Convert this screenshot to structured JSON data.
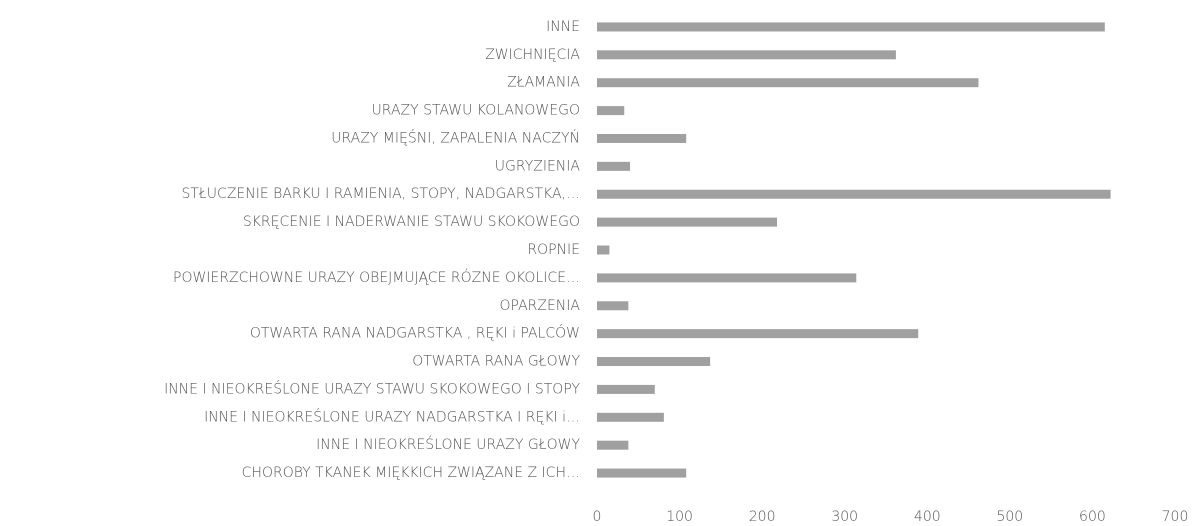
{
  "chart_data": {
    "type": "bar",
    "orientation": "horizontal",
    "categories": [
      "INNE",
      "ZWICHNIĘCIA",
      "ZŁAMANIA",
      "URAZY STAWU KOLANOWEGO",
      "URAZY MIĘŚNI, ZAPALENIA NACZYŃ",
      "UGRYZIENIA",
      "STŁUCZENIE BARKU I RAMIENIA, STOPY, NADGARSTKA,…",
      "SKRĘCENIE I NADERWANIE STAWU SKOKOWEGO",
      "ROPNIE",
      "POWIERZCHOWNE URAZY OBEJMUJĄCE RÓZNE OKOLICE…",
      "OPARZENIA",
      "OTWARTA RANA NADGARSTKA , RĘKI i PALCÓW",
      "OTWARTA RANA GŁOWY",
      "INNE I NIEOKREŚLONE URAZY STAWU SKOKOWEGO I STOPY",
      "INNE I NIEOKREŚLONE URAZY NADGARSTKA I RĘKI i…",
      "INNE I NIEOKREŚLONE URAZY GŁOWY",
      "CHOROBY TKANEK MIĘKKICH ZWIĄZANE Z ICH…"
    ],
    "values": [
      615,
      362,
      462,
      33,
      108,
      40,
      622,
      218,
      15,
      314,
      38,
      389,
      137,
      70,
      81,
      38,
      108
    ],
    "color": "#a0a0a0",
    "xlim": [
      0,
      700
    ],
    "xticks": [
      0,
      100,
      200,
      300,
      400,
      500,
      600,
      700
    ],
    "grid": false
  }
}
